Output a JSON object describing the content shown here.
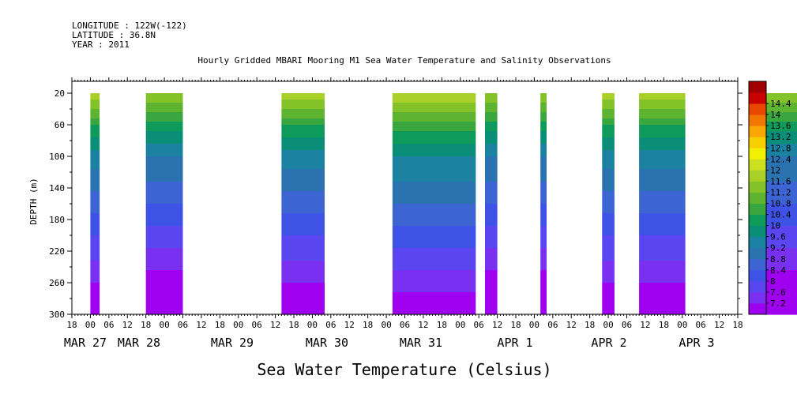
{
  "header": {
    "longitude": "LONGITUDE : 122W(-122)",
    "latitude": "LATITUDE : 36.8N",
    "year": "YEAR : 2011"
  },
  "chart_data": {
    "type": "heatmap",
    "title": "Hourly Gridded MBARI Mooring M1 Sea Water Temperature and Salinity Observations",
    "xlabel": "Sea Water Temperature (Celsius)",
    "ylabel": "DEPTH (m)",
    "x_hour_ticks": [
      "18",
      "00",
      "06",
      "12",
      "18",
      "00",
      "06",
      "12",
      "18",
      "00",
      "06",
      "12",
      "18",
      "00",
      "06",
      "12",
      "18",
      "00",
      "06",
      "12",
      "18",
      "00",
      "06",
      "12",
      "18",
      "00",
      "06",
      "12",
      "18",
      "00",
      "06",
      "12",
      "18",
      "00",
      "06",
      "12",
      "18"
    ],
    "x_date_labels": [
      "MAR 27",
      "MAR 28",
      "MAR 29",
      "MAR 30",
      "MAR 31",
      "APR  1",
      "APR  2",
      "APR  3"
    ],
    "y_ticks": [
      20,
      60,
      100,
      140,
      180,
      220,
      260,
      300
    ],
    "ylim": [
      300,
      5
    ],
    "colorbar_levels": [
      7.2,
      7.6,
      8,
      8.4,
      8.8,
      9.2,
      9.6,
      10,
      10.4,
      10.8,
      11.2,
      11.6,
      12,
      12.4,
      12.8,
      13.2,
      13.6,
      14,
      14.4
    ],
    "colorbar_colors": [
      "#a000f0",
      "#7a30f0",
      "#5a46f0",
      "#3e52e6",
      "#3c64d2",
      "#2a72b0",
      "#1a82a0",
      "#0a8e78",
      "#0e9a5a",
      "#3aa640",
      "#5eb430",
      "#84c22a",
      "#a8d028",
      "#cce020",
      "#f0f000",
      "#f8d000",
      "#f8a800",
      "#f07800",
      "#e84800",
      "#c80000",
      "#a00000"
    ],
    "blocks": [
      {
        "start_hour": 60,
        "end_hour": 63,
        "top_depth": 20,
        "surface_temp": 11.8
      },
      {
        "start_hour": 78,
        "end_hour": 90,
        "top_depth": 20,
        "surface_temp": 11.6
      },
      {
        "start_hour": 122,
        "end_hour": 136,
        "top_depth": 20,
        "surface_temp": 11.8
      },
      {
        "start_hour": 158,
        "end_hour": 185,
        "top_depth": 20,
        "surface_temp": 12.0
      },
      {
        "start_hour": 188,
        "end_hour": 192,
        "top_depth": 20,
        "surface_temp": 11.6
      },
      {
        "start_hour": 206,
        "end_hour": 208,
        "top_depth": 20,
        "surface_temp": 11.6
      },
      {
        "start_hour": 226,
        "end_hour": 230,
        "top_depth": 20,
        "surface_temp": 11.8
      },
      {
        "start_hour": 238,
        "end_hour": 253,
        "top_depth": 20,
        "surface_temp": 11.8
      },
      {
        "start_hour": 278,
        "end_hour": 300,
        "top_depth": 20,
        "surface_temp": 11.6
      }
    ]
  }
}
